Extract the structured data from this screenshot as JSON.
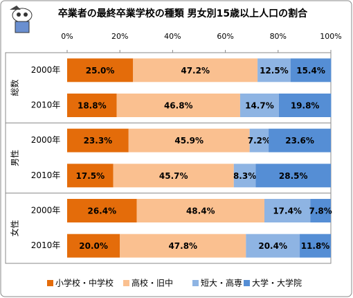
{
  "chart_data": {
    "type": "stacked-bar-horizontal",
    "title": "卒業者の最終卒業学校の種類 男女別15歳以上人口の割合",
    "categories": [
      "2000年",
      "2010年",
      "2000年",
      "2010年",
      "2000年",
      "2010年"
    ],
    "groups": [
      "総数",
      "男性",
      "女性"
    ],
    "series": [
      {
        "name": "小学校・中学校",
        "color": "#e46c0a",
        "values": [
          25.0,
          18.8,
          23.3,
          17.5,
          26.4,
          20.0
        ],
        "value_labels": [
          "25.0%",
          "18.8%",
          "23.3%",
          "17.5%",
          "26.4%",
          "20.0%"
        ]
      },
      {
        "name": "高校・旧中",
        "color": "#fac090",
        "values": [
          47.2,
          46.8,
          45.9,
          45.7,
          48.4,
          47.8
        ],
        "value_labels": [
          "47.2%",
          "46.8%",
          "45.9%",
          "45.7%",
          "48.4%",
          "47.8%"
        ]
      },
      {
        "name": "短大・高専",
        "color": "#8eb4e3",
        "values": [
          12.5,
          14.7,
          7.2,
          8.3,
          17.4,
          20.4
        ],
        "value_labels": [
          "12.5%",
          "14.7%",
          "7.2%",
          "8.3%",
          "17.4%",
          "20.4%"
        ]
      },
      {
        "name": "大学・大学院",
        "color": "#558ed5",
        "values": [
          15.4,
          19.8,
          23.6,
          28.5,
          7.8,
          11.8
        ],
        "value_labels": [
          "15.4%",
          "19.8%",
          "23.6%",
          "28.5%",
          "7.8%",
          "11.8%"
        ]
      }
    ],
    "xlim": [
      0,
      100
    ],
    "xticks": [
      {
        "value": 0,
        "label": "0%"
      },
      {
        "value": 20,
        "label": "20%"
      },
      {
        "value": 40,
        "label": "40%"
      },
      {
        "value": 60,
        "label": "60%"
      },
      {
        "value": 80,
        "label": "80%"
      },
      {
        "value": 100,
        "label": "100%"
      }
    ],
    "legend": "bottom"
  }
}
